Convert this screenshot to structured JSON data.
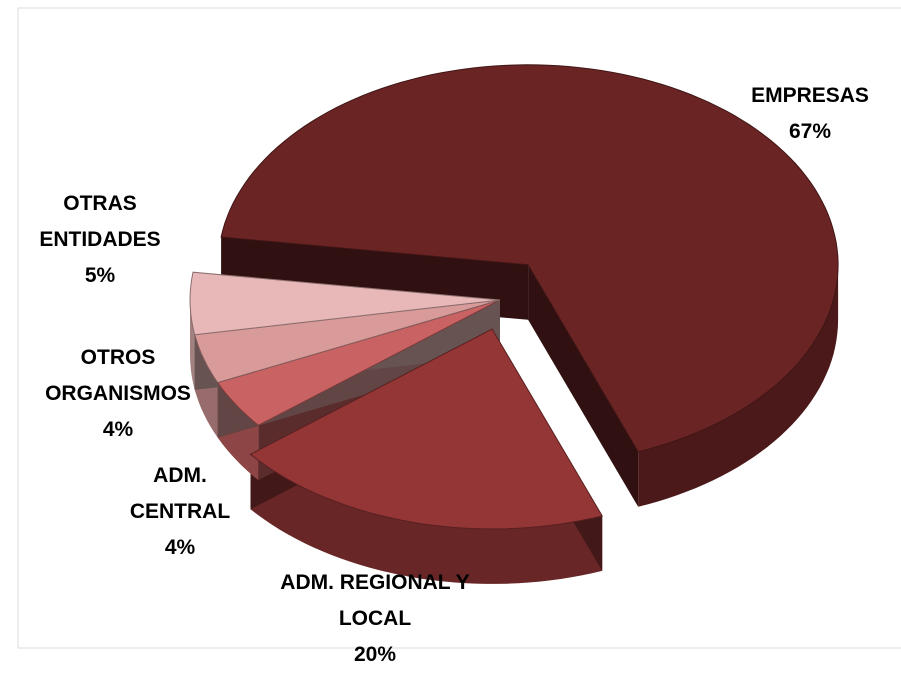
{
  "chart_data": {
    "type": "pie3d",
    "categories": [
      "EMPRESAS",
      "ADM. REGIONAL Y LOCAL",
      "ADM. CENTRAL",
      "OTROS ORGANISMOS",
      "OTRAS ENTIDADES"
    ],
    "values": [
      67,
      20,
      4,
      4,
      5
    ],
    "value_labels": [
      "67%",
      "20%",
      "4%",
      "4%",
      "5%"
    ],
    "colors": [
      "#6b2424",
      "#943636",
      "#c96262",
      "#d99a9a",
      "#e8b8b8"
    ]
  }
}
